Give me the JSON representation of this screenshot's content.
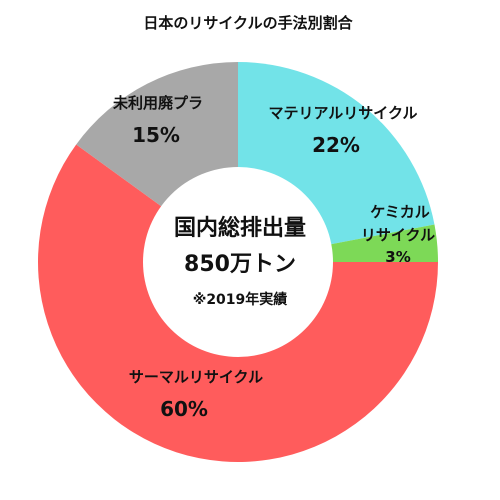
{
  "chart_data": {
    "type": "pie",
    "title": "日本のリサイクルの手法別割合",
    "slices": [
      {
        "name": "マテリアルリサイクル",
        "value": 22,
        "pct_label": "22%",
        "color": "#72e3e8"
      },
      {
        "name": "ケミカルリサイクル",
        "value": 3,
        "pct_label": "3%",
        "color": "#7dd957"
      },
      {
        "name": "サーマルリサイクル",
        "value": 60,
        "pct_label": "60%",
        "color": "#ff5c5c"
      },
      {
        "name": "未利用廃プラ",
        "value": 15,
        "pct_label": "15%",
        "color": "#a8a8a8"
      }
    ],
    "center": {
      "line1": "国内総排出量",
      "line2": "850万トン",
      "note": "※2019年実績"
    },
    "start_direction": "top",
    "direction": "clockwise",
    "donut": true
  },
  "labels": {
    "material_line1": "マテリアルリサイクル",
    "chemical_line1": "ケミカル",
    "chemical_line2": "リサイクル",
    "thermal_line1": "サーマルリサイクル",
    "unused_line1": "未利用廃プラ"
  }
}
